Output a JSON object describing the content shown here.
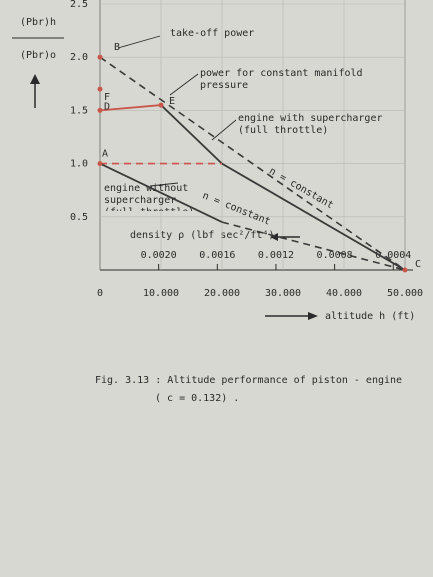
{
  "chart_data": {
    "type": "line",
    "y_label": {
      "numerator": "(Pbr)h",
      "denominator": "(Pbr)o"
    },
    "x_label": "altitude h (ft)",
    "x2_label": "density ρ (lbf sec²/ft⁴)",
    "caption": [
      "Fig. 3.13 : Altitude performance of piston - engine",
      "( c = 0.132) ."
    ],
    "xlim": [
      0,
      50000
    ],
    "xticks": [
      0,
      {
        "value": 10000,
        "label": "10.000"
      },
      {
        "value": 20000,
        "label": "20.000"
      },
      {
        "value": 30000,
        "label": "30.000"
      },
      {
        "value": 40000,
        "label": "40.000"
      },
      {
        "value": 50000,
        "label": "50.000"
      }
    ],
    "x2lim": [
      0.0024,
      0.00032
    ],
    "x2ticks": [
      {
        "value": 0.002,
        "label": "0.0020"
      },
      {
        "value": 0.0016,
        "label": "0.0016"
      },
      {
        "value": 0.0012,
        "label": "0.0012"
      },
      {
        "value": 0.0008,
        "label": "0.0008"
      },
      {
        "value": 0.0004,
        "label": "0.0004"
      }
    ],
    "ylim": [
      0,
      2.5
    ],
    "yticks": [
      0.5,
      {
        "value": 1,
        "label": "1.0"
      },
      1.5,
      {
        "value": 2,
        "label": "2.0"
      },
      2.5
    ],
    "series": [
      {
        "name": "take-off power",
        "color": "#3a3a3a",
        "dashed": true,
        "x": [
          0,
          50000
        ],
        "values": [
          2.0,
          0
        ]
      },
      {
        "name": "power for constant manifold pressure",
        "color": "#c8574a",
        "dashed": false,
        "x": [
          0,
          10000
        ],
        "values": [
          1.5,
          1.55
        ]
      },
      {
        "name": "engine with supercharger (full throttle)",
        "color": "#3a3a3a",
        "dashed": false,
        "x": [
          10000,
          20000,
          50000
        ],
        "values": [
          1.55,
          1.0,
          0
        ]
      },
      {
        "color": "#d0504a",
        "dashed": true,
        "x": [
          0,
          20000
        ],
        "values": [
          1.0,
          1.0
        ]
      },
      {
        "name": "engine without supercharger (full throttle)",
        "color": "#3a3a3a",
        "dashed": false,
        "x": [
          0,
          20000
        ],
        "values": [
          1.0,
          0.45
        ]
      },
      {
        "color": "#3a3a3a",
        "dashed": true,
        "x": [
          20000,
          50000
        ],
        "values": [
          0.45,
          0
        ]
      }
    ],
    "points": [
      {
        "label": "A",
        "x": 0,
        "y": 1.0
      },
      {
        "label": "B",
        "x": 0,
        "y": 2.0
      },
      {
        "label": "C",
        "x": 50000,
        "y": 0
      },
      {
        "label": "D",
        "x": 0,
        "y": 1.5
      },
      {
        "label": "E",
        "x": 10000,
        "y": 1.55
      },
      {
        "label": "F",
        "x": 0,
        "y": 1.7
      }
    ],
    "annotations": [
      "n = constant",
      "n = constant"
    ]
  }
}
